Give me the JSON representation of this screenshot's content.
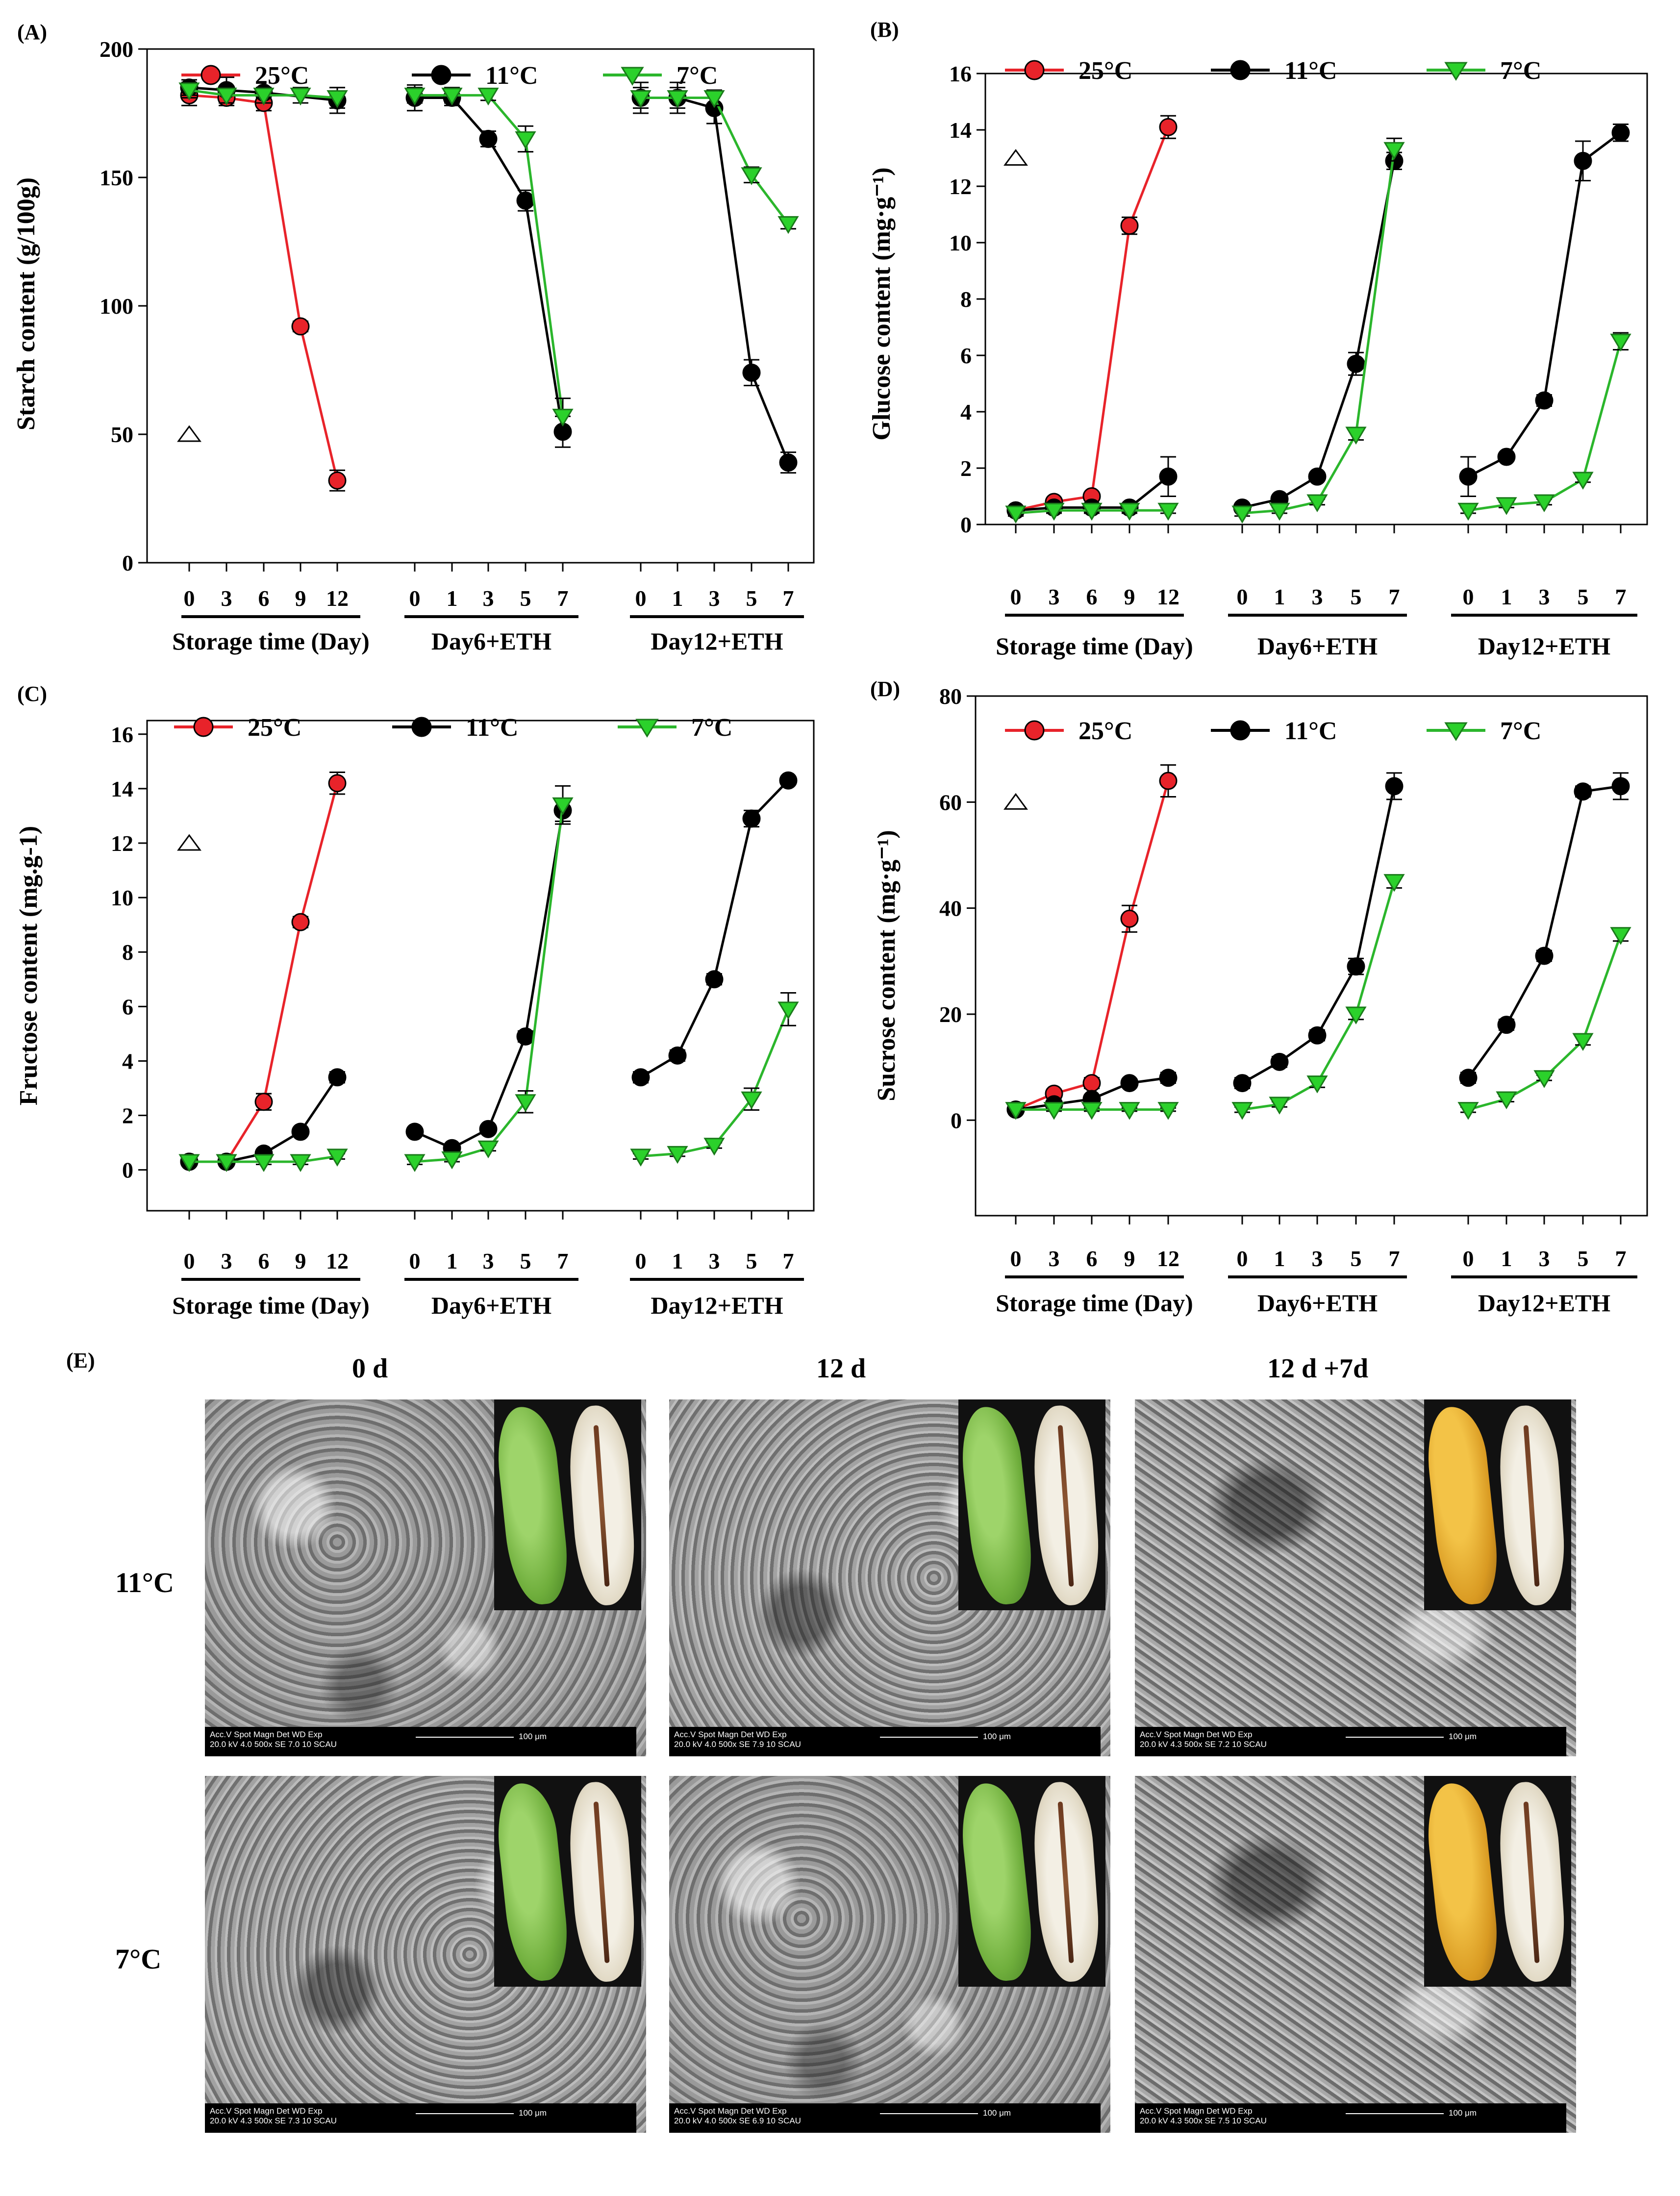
{
  "legend": {
    "items": [
      {
        "label": "25°C",
        "color": "#e8232a",
        "marker": "circle",
        "fill": "#e8232a"
      },
      {
        "label": "11°C",
        "color": "#000000",
        "marker": "circle",
        "fill": "#000000"
      },
      {
        "label": "7°C",
        "color": "#2bb62c",
        "marker": "triangle-down",
        "fill": "#2bd12b"
      }
    ]
  },
  "groups": [
    {
      "label": "Storage time (Day)",
      "ticks": [
        "0",
        "3",
        "6",
        "9",
        "12"
      ]
    },
    {
      "label": "Day6+ETH",
      "ticks": [
        "0",
        "1",
        "3",
        "5",
        "7"
      ]
    },
    {
      "label": "Day12+ETH",
      "ticks": [
        "0",
        "1",
        "3",
        "5",
        "7"
      ]
    }
  ],
  "chart_data": [
    {
      "panel": "(A)",
      "type": "line",
      "ylabel": "Starch content (g/100g)",
      "ylim": [
        0,
        200
      ],
      "yticks": [
        "0",
        "50",
        "100",
        "150",
        "200"
      ],
      "marker_ref": {
        "value": 50
      },
      "series": [
        {
          "name": "25°C",
          "groups": [
            [
              182,
              181,
              179,
              92,
              32
            ],
            null,
            null
          ],
          "err": [
            [
              4,
              3,
              3,
              2,
              4
            ],
            null,
            null
          ]
        },
        {
          "name": "11°C",
          "groups": [
            [
              185,
              184,
              183,
              null,
              180
            ],
            [
              181,
              181,
              165,
              141,
              51
            ],
            [
              181,
              181,
              177,
              74,
              39
            ]
          ],
          "err": [
            [
              3,
              5,
              2,
              0,
              5
            ],
            [
              5,
              3,
              3,
              4,
              6
            ],
            [
              6,
              6,
              6,
              5,
              4
            ]
          ]
        },
        {
          "name": "7°C",
          "groups": [
            [
              184,
              182,
              182,
              182,
              181
            ],
            [
              182,
              182,
              182,
              165,
              57
            ],
            [
              181,
              181,
              181,
              151,
              132
            ]
          ],
          "err": [
            [
              3,
              3,
              3,
              3,
              4
            ],
            [
              3,
              3,
              2,
              5,
              7
            ],
            [
              4,
              4,
              3,
              3,
              2
            ]
          ]
        }
      ]
    },
    {
      "panel": "(B)",
      "type": "line",
      "ylabel": "Glucose content (mg·g⁻¹)",
      "ylim": [
        0,
        16
      ],
      "yticks": [
        "0",
        "2",
        "4",
        "6",
        "8",
        "10",
        "12",
        "14",
        "16"
      ],
      "marker_ref": {
        "value": 13
      },
      "series": [
        {
          "name": "25°C",
          "groups": [
            [
              0.5,
              0.8,
              1.0,
              10.6,
              14.1
            ],
            null,
            null
          ],
          "err": [
            [
              0.1,
              0.1,
              0.1,
              0.3,
              0.4
            ],
            null,
            null
          ]
        },
        {
          "name": "11°C",
          "groups": [
            [
              0.5,
              0.6,
              0.6,
              0.6,
              1.7
            ],
            [
              0.6,
              0.9,
              1.7,
              5.7,
              12.9
            ],
            [
              1.7,
              2.4,
              4.4,
              12.9,
              13.9
            ]
          ],
          "err": [
            [
              0.1,
              0.1,
              0.1,
              0.1,
              0.7
            ],
            [
              0.1,
              0.1,
              0.1,
              0.4,
              0.3
            ],
            [
              0.7,
              0.1,
              0.2,
              0.7,
              0.3
            ]
          ]
        },
        {
          "name": "7°C",
          "groups": [
            [
              0.4,
              0.5,
              0.5,
              0.5,
              0.5
            ],
            [
              0.4,
              0.5,
              0.8,
              3.2,
              13.3
            ],
            [
              0.5,
              0.7,
              0.8,
              1.6,
              6.5
            ]
          ],
          "err": [
            [
              0.1,
              0.1,
              0.1,
              0.1,
              0.1
            ],
            [
              0.1,
              0.1,
              0.1,
              0.2,
              0.4
            ],
            [
              0.1,
              0.1,
              0.1,
              0.1,
              0.3
            ]
          ]
        }
      ]
    },
    {
      "panel": "(C)",
      "type": "line",
      "ylabel": "Fructose content (mg.g-1)",
      "ylim": [
        -1.5,
        16.5
      ],
      "yticks": [
        "0",
        "2",
        "4",
        "6",
        "8",
        "10",
        "12",
        "14",
        "16"
      ],
      "marker_ref": {
        "value": 12
      },
      "series": [
        {
          "name": "25°C",
          "groups": [
            [
              0.3,
              0.3,
              2.5,
              9.1,
              14.2
            ],
            null,
            null
          ],
          "err": [
            [
              0.1,
              0.1,
              0.3,
              0.2,
              0.4
            ],
            null,
            null
          ]
        },
        {
          "name": "11°C",
          "groups": [
            [
              0.3,
              0.3,
              0.6,
              1.4,
              3.4
            ],
            [
              1.4,
              0.8,
              1.5,
              4.9,
              13.2
            ],
            [
              3.4,
              4.2,
              7.0,
              12.9,
              14.3
            ]
          ],
          "err": [
            [
              0.1,
              0.1,
              0.1,
              0.1,
              0.2
            ],
            [
              0.1,
              0.1,
              0.1,
              0.2,
              0.4
            ],
            [
              0.2,
              0.2,
              0.2,
              0.3,
              0.1
            ]
          ]
        },
        {
          "name": "7°C",
          "groups": [
            [
              0.3,
              0.3,
              0.3,
              0.3,
              0.5
            ],
            [
              0.3,
              0.4,
              0.8,
              2.5,
              13.4
            ],
            [
              0.5,
              0.6,
              0.9,
              2.6,
              5.9
            ]
          ],
          "err": [
            [
              0.1,
              0.1,
              0.1,
              0.1,
              0.1
            ],
            [
              0.1,
              0.1,
              0.1,
              0.4,
              0.7
            ],
            [
              0.1,
              0.1,
              0.1,
              0.4,
              0.6
            ]
          ]
        }
      ]
    },
    {
      "panel": "(D)",
      "type": "line",
      "ylabel": "Sucrose content (mg·g⁻¹)",
      "ylim": [
        -18,
        80
      ],
      "yticks": [
        "0",
        "20",
        "40",
        "60",
        "80"
      ],
      "marker_ref": {
        "value": 60
      },
      "series": [
        {
          "name": "25°C",
          "groups": [
            [
              2,
              5,
              7,
              38,
              64
            ],
            null,
            null
          ],
          "err": [
            [
              0.5,
              0.8,
              1,
              2.5,
              3
            ],
            null,
            null
          ]
        },
        {
          "name": "11°C",
          "groups": [
            [
              2,
              3,
              4,
              7,
              8
            ],
            [
              7,
              11,
              16,
              29,
              63
            ],
            [
              8,
              18,
              31,
              62,
              63
            ]
          ],
          "err": [
            [
              0.5,
              0.5,
              0.5,
              0.8,
              1
            ],
            [
              1,
              1,
              1,
              1.5,
              2.5
            ],
            [
              1,
              1,
              1,
              1,
              2.5
            ]
          ]
        },
        {
          "name": "7°C",
          "groups": [
            [
              2,
              2,
              2,
              2,
              2
            ],
            [
              2,
              3,
              7,
              20,
              45
            ],
            [
              2,
              4,
              8,
              15,
              35
            ]
          ],
          "err": [
            [
              0.3,
              0.3,
              0.3,
              0.3,
              0.3
            ],
            [
              0.5,
              0.5,
              0.8,
              1,
              1.2
            ],
            [
              0.5,
              0.5,
              0.5,
              0.8,
              1.2
            ]
          ]
        }
      ]
    }
  ],
  "sem": {
    "panel": "(E)",
    "columns": [
      "0 d",
      "12 d",
      "12 d +7d"
    ],
    "rows": [
      "11°C",
      "7°C"
    ],
    "bars": [
      [
        "Acc.V   Spot Magn    Det   WD   Exp|20.0 kV 4.0   500x     SE   7.0   10     SCAU",
        "Acc.V   Spot Magn    Det   WD   Exp|20.0 kV 4.0   500x     SE   7.9   10     SCAU",
        "Acc.V   Spot Magn    Det   WD   Exp|20.0 kV 4.3   500x     SE   7.2   10     SCAU"
      ],
      [
        "Acc.V   Spot Magn    Det   WD   Exp|20.0 kV 4.3   500x     SE   7.3   10     SCAU",
        "Acc.V   Spot Magn    Det   WD   Exp|20.0 kV 4.0   500x     SE   6.9   10     SCAU",
        "Acc.V   Spot Magn    Det   WD   Exp|20.0 kV 4.3   500x     SE   7.5   10     SCAU"
      ]
    ],
    "scale_label": "100 μm",
    "peel_color": [
      [
        "green",
        "green",
        "yellow"
      ],
      [
        "green",
        "green",
        "yellow"
      ]
    ]
  }
}
